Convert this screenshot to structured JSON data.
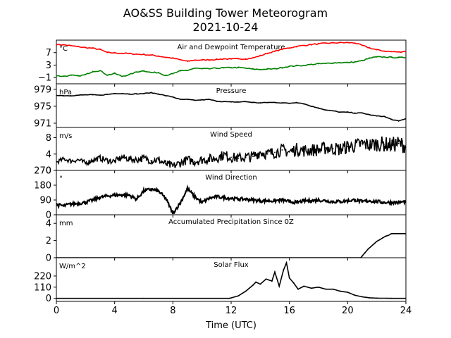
{
  "title": "AO&SS Building Tower Meteorogram",
  "subtitle": "2021-10-24",
  "xlabel": "Time (UTC)",
  "chart_data": [
    {
      "type": "line",
      "title": "Air and Dewpoint Temperature",
      "unit": "°C",
      "x": [
        0,
        0.5,
        1,
        1.5,
        2,
        2.5,
        3,
        3.5,
        4,
        4.5,
        5,
        5.5,
        6,
        6.5,
        7,
        7.5,
        8,
        8.5,
        9,
        9.5,
        10,
        10.5,
        11,
        11.5,
        12,
        12.5,
        13,
        13.5,
        14,
        14.5,
        15,
        15.5,
        16,
        16.5,
        17,
        17.5,
        18,
        18.5,
        19,
        19.5,
        20,
        20.5,
        21,
        21.5,
        22,
        22.5,
        23,
        23.5,
        24
      ],
      "series": [
        {
          "color": "#ff0000",
          "values": [
            9.6,
            9.5,
            9.2,
            8.9,
            8.6,
            8.4,
            8.0,
            7.0,
            6.9,
            6.8,
            6.7,
            6.5,
            6.4,
            6.2,
            5.9,
            5.5,
            5.2,
            4.7,
            4.2,
            4.6,
            4.6,
            4.7,
            4.8,
            5.0,
            4.9,
            5.0,
            5.0,
            5.3,
            6.0,
            6.8,
            7.4,
            8.1,
            8.5,
            9.0,
            9.3,
            9.6,
            9.8,
            10.0,
            10.1,
            10.2,
            10.2,
            10.1,
            9.3,
            8.5,
            7.9,
            7.5,
            7.3,
            7.2,
            7.4
          ]
        },
        {
          "color": "#008000",
          "values": [
            -0.4,
            -0.6,
            -0.3,
            -0.5,
            -0.1,
            1.0,
            1.2,
            -0.2,
            0.3,
            -0.6,
            -0.1,
            0.8,
            1.2,
            0.6,
            0.6,
            -0.3,
            0.2,
            1.1,
            1.3,
            2.0,
            1.8,
            1.8,
            2.0,
            2.1,
            2.2,
            2.2,
            2.0,
            1.7,
            1.6,
            1.7,
            1.8,
            2.2,
            2.6,
            2.8,
            2.9,
            3.2,
            3.4,
            3.5,
            3.7,
            3.8,
            3.8,
            4.0,
            4.4,
            5.2,
            5.6,
            5.6,
            5.5,
            5.4,
            5.4
          ]
        }
      ],
      "ylim": [
        -3,
        11
      ],
      "yticks": [
        -1,
        3,
        7
      ]
    },
    {
      "type": "line",
      "title": "Pressure",
      "unit": "hPa",
      "x": [
        0,
        0.5,
        1,
        1.5,
        2,
        2.5,
        3,
        3.5,
        4,
        4.5,
        5,
        5.5,
        6,
        6.5,
        7,
        7.5,
        8,
        8.5,
        9,
        9.5,
        10,
        10.5,
        11,
        11.5,
        12,
        12.5,
        13,
        13.5,
        14,
        14.5,
        15,
        15.5,
        16,
        16.5,
        17,
        17.5,
        18,
        18.5,
        19,
        19.5,
        20,
        20.5,
        21,
        21.5,
        22,
        22.5,
        23,
        23.5,
        24
      ],
      "series": [
        {
          "color": "#000000",
          "values": [
            977.6,
            977.5,
            977.5,
            977.6,
            977.7,
            977.7,
            977.6,
            977.8,
            978.0,
            978.0,
            977.9,
            977.9,
            978.0,
            978.2,
            977.9,
            977.5,
            977.2,
            976.6,
            976.6,
            976.4,
            976.5,
            976.6,
            976.2,
            976.1,
            976.0,
            976.0,
            976.1,
            975.9,
            975.8,
            975.9,
            975.9,
            975.8,
            975.7,
            975.9,
            975.6,
            975.0,
            974.6,
            974.1,
            973.9,
            973.6,
            973.6,
            973.4,
            973.4,
            973.0,
            972.7,
            972.6,
            971.9,
            971.5,
            972.1
          ]
        }
      ],
      "ylim": [
        970,
        980.3
      ],
      "yticks": [
        971,
        975,
        979
      ]
    },
    {
      "type": "line",
      "title": "Wind Speed",
      "unit": "m/s",
      "x": [
        0,
        0.5,
        1,
        1.5,
        2,
        2.5,
        3,
        3.5,
        4,
        4.5,
        5,
        5.5,
        6,
        6.5,
        7,
        7.5,
        8,
        8.5,
        9,
        9.5,
        10,
        10.5,
        11,
        11.5,
        12,
        12.5,
        13,
        13.5,
        14,
        14.5,
        15,
        15.5,
        16,
        16.5,
        17,
        17.5,
        18,
        18.5,
        19,
        19.5,
        20,
        20.5,
        21,
        21.5,
        22,
        22.5,
        23,
        23.5,
        24
      ],
      "series": [
        {
          "color": "#000000",
          "values": [
            2.0,
            2.8,
            2.3,
            2.6,
            1.8,
            2.5,
            3.0,
            2.4,
            2.2,
            3.2,
            2.8,
            2.6,
            3.0,
            2.4,
            2.6,
            1.6,
            1.0,
            1.8,
            2.6,
            2.2,
            2.6,
            2.8,
            3.0,
            3.8,
            3.2,
            3.0,
            3.2,
            3.4,
            4.5,
            4.0,
            4.4,
            5.0,
            4.5,
            5.2,
            4.8,
            5.0,
            5.0,
            5.5,
            5.3,
            5.2,
            5.8,
            6.0,
            6.5,
            6.2,
            6.5,
            6.4,
            6.2,
            6.6,
            6.0
          ]
        }
      ],
      "ylim": [
        0,
        10.5
      ],
      "yticks": [
        0,
        4,
        8
      ]
    },
    {
      "type": "scatter",
      "title": "Wind Direction",
      "unit": "°",
      "x": [
        0,
        0.5,
        1,
        1.5,
        2,
        2.5,
        3,
        3.5,
        4,
        4.5,
        5,
        5.5,
        6,
        6.5,
        7,
        7.5,
        8,
        8.5,
        9,
        9.5,
        10,
        10.5,
        11,
        11.5,
        12,
        12.5,
        13,
        13.5,
        14,
        14.5,
        15,
        15.5,
        16,
        16.5,
        17,
        17.5,
        18,
        18.5,
        19,
        19.5,
        20,
        20.5,
        21,
        21.5,
        22,
        22.5,
        23,
        23.5,
        24
      ],
      "series": [
        {
          "color": "#000000",
          "values": [
            60,
            55,
            65,
            70,
            75,
            90,
            105,
            115,
            120,
            120,
            120,
            95,
            145,
            155,
            145,
            100,
            10,
            70,
            160,
            110,
            75,
            100,
            110,
            105,
            100,
            95,
            95,
            90,
            85,
            85,
            85,
            90,
            80,
            75,
            85,
            85,
            90,
            85,
            80,
            80,
            85,
            90,
            80,
            85,
            80,
            75,
            75,
            75,
            80
          ]
        }
      ],
      "ylim": [
        0,
        270
      ],
      "yticks": [
        0,
        90,
        180,
        270
      ]
    },
    {
      "type": "line",
      "title": "Accumulated Precipitation Since 0Z",
      "unit": "mm",
      "x": [
        0,
        20.9,
        21.0,
        21.2,
        21.4,
        21.6,
        21.8,
        22.0,
        22.2,
        22.4,
        22.6,
        22.8,
        23.0,
        24
      ],
      "series": [
        {
          "color": "#000000",
          "values": [
            0,
            0,
            0.2,
            0.6,
            1.0,
            1.3,
            1.6,
            1.9,
            2.1,
            2.3,
            2.5,
            2.6,
            2.8,
            2.8
          ]
        }
      ],
      "ylim": [
        0,
        5
      ],
      "yticks": [
        0,
        2,
        4
      ]
    },
    {
      "type": "line",
      "title": "Solar Flux",
      "unit": "W/m^2",
      "x": [
        0,
        6,
        11.9,
        12.5,
        13,
        13.5,
        13.7,
        14,
        14.4,
        14.8,
        15,
        15.3,
        15.6,
        15.8,
        16,
        16.3,
        16.6,
        17,
        17.5,
        18,
        18.5,
        19,
        19.5,
        20,
        20.5,
        21,
        21.5,
        22,
        23,
        24
      ],
      "series": [
        {
          "color": "#000000",
          "values": [
            0,
            0,
            0,
            25,
            70,
            130,
            160,
            140,
            190,
            170,
            260,
            120,
            280,
            350,
            200,
            150,
            90,
            120,
            100,
            110,
            90,
            90,
            70,
            60,
            30,
            15,
            5,
            2,
            0,
            0
          ]
        }
      ],
      "ylim": [
        -30,
        400
      ],
      "yticks": [
        0,
        110,
        220
      ]
    }
  ],
  "x_axis": {
    "range": [
      0,
      24
    ],
    "ticks": [
      "0",
      "4",
      "8",
      "12",
      "16",
      "20",
      "24"
    ]
  }
}
